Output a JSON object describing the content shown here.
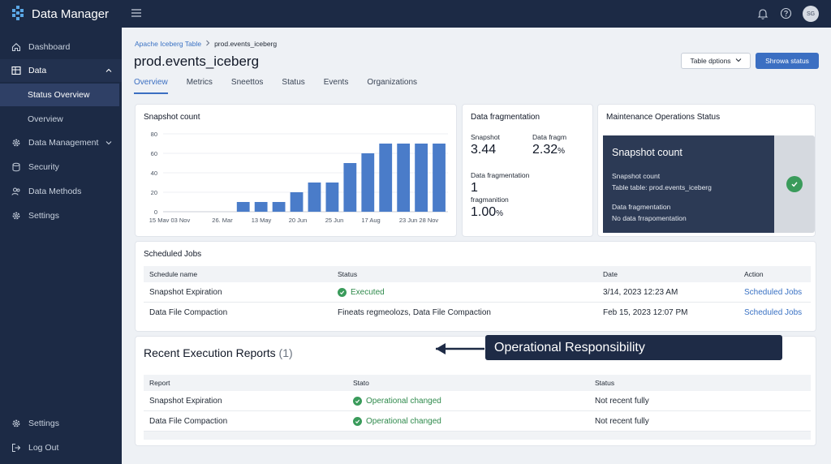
{
  "app": {
    "title": "Data Manager",
    "avatar_initials": "SG"
  },
  "sidebar": {
    "items": [
      {
        "label": "Dashboard",
        "icon": "home-icon"
      },
      {
        "label": "Data",
        "icon": "table-icon"
      },
      {
        "label": "Status Overview"
      },
      {
        "label": "Overview"
      },
      {
        "label": "Data Management",
        "icon": "gear-icon"
      },
      {
        "label": "Security",
        "icon": "database-icon"
      },
      {
        "label": "Data Methods",
        "icon": "users-icon"
      },
      {
        "label": "Settings",
        "icon": "gear-icon"
      }
    ],
    "footer": [
      {
        "label": "Settings",
        "icon": "gear-icon"
      },
      {
        "label": "Log Out",
        "icon": "logout-icon"
      }
    ]
  },
  "breadcrumb": {
    "parent": "Apache Iceberg Table",
    "current": "prod.events_iceberg"
  },
  "page": {
    "title": "prod.events_iceberg"
  },
  "actions": {
    "table_options": "Table dptions",
    "primary": "Shrowa status"
  },
  "tabs": [
    "Overview",
    "Metrics",
    "Sneettos",
    "Status",
    "Events",
    "Organizations"
  ],
  "snapshot_card": {
    "title": "Snapshot count"
  },
  "chart_data": {
    "type": "bar",
    "title": "Snapshot count",
    "tick_labels": [
      "15 Mav 03 Nov",
      "26. Mar",
      "13 May",
      "20 Jun",
      "25 Jun",
      "17 Aug",
      "23 Jun 28 Nov"
    ],
    "values": [
      0,
      0,
      0,
      0,
      10,
      10,
      10,
      20,
      30,
      30,
      50,
      60,
      70,
      70,
      70,
      70
    ],
    "ylim": [
      0,
      80
    ],
    "yticks": [
      0,
      20,
      40,
      60,
      80
    ],
    "color": "#4a7cc9",
    "grid": "horizontal"
  },
  "fragmentation": {
    "title": "Data fragmentation",
    "snapshot_label": "Snapshot",
    "snapshot_value": "3.44",
    "fragm_label": "Data fragm",
    "fragm_value": "2.32",
    "fragm_unit": "%",
    "frag_label": "Data fragmentation",
    "frag_count": "1",
    "frag_sub": "fragmanition",
    "frag_pct_value": "1.00",
    "frag_pct_unit": "%"
  },
  "maintenance": {
    "title": "Maintenance Operations Status",
    "panel_title": "Snapshot count",
    "line1": "Snapshot count",
    "line2": "Table table: prod.events_iceberg",
    "line3": "Data fragmentation",
    "line4": "No data frrapomentation"
  },
  "scheduled_jobs": {
    "title": "Scheduled Jobs",
    "columns": [
      "Schedule name",
      "Status",
      "Date",
      "Action"
    ],
    "rows": [
      {
        "name": "Snapshot Expiration",
        "status": "Executed",
        "date": "3/14, 2023 12:23 AM",
        "action": "Scheduled Jobs"
      },
      {
        "name": "Data File Compaction",
        "status": "Fineats regmeolozs, Data File Compaction",
        "date": "Feb 15, 2023 12:07 PM",
        "action": "Scheduled Jobs"
      }
    ]
  },
  "reports": {
    "title": "Recent Execution Reports",
    "count": "(1)",
    "columns": [
      "Report",
      "Stato",
      "Status"
    ],
    "rows": [
      {
        "report": "Snapshot Expiration",
        "stato": "Operational changed",
        "status": "Not recent fully"
      },
      {
        "report": "Data File Compaction",
        "stato": "Operational changed",
        "status": "Not recent fully"
      }
    ]
  },
  "callout": {
    "text": "Operational Responsibility"
  }
}
